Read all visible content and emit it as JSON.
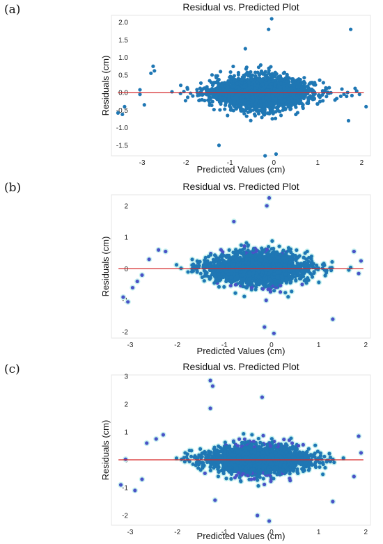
{
  "panels": [
    {
      "label": "(a)"
    },
    {
      "label": "(b)"
    },
    {
      "label": "(c)"
    }
  ],
  "chart_data": [
    {
      "type": "scatter",
      "title": "Residual vs. Predicted Plot",
      "xlabel": "Predicted Values (cm)",
      "ylabel": "Residuals (cm)",
      "xlim": [
        -3.7,
        2.2
      ],
      "ylim": [
        -1.8,
        2.2
      ],
      "xticks": [
        -3,
        -2,
        -1,
        0,
        1,
        2
      ],
      "yticks": [
        -1.5,
        -1.0,
        -0.5,
        0.0,
        0.5,
        1.0,
        1.5,
        2.0
      ],
      "ytick_labels": [
        "-1.5",
        "-1.0",
        "-0.5",
        "0.0",
        "0.5",
        "1.0",
        "1.5",
        "2.0"
      ],
      "reference_line_y": 0,
      "point_color": "#1f77b4",
      "line_color": "#d62728",
      "grid": false,
      "cloud": {
        "center_x": -0.3,
        "center_y": 0.0,
        "spread_x": 1.05,
        "spread_y": 0.45,
        "count": 2200
      },
      "outliers": [
        {
          "x": -3.55,
          "y": -0.58
        },
        {
          "x": -3.45,
          "y": -0.62
        },
        {
          "x": -3.4,
          "y": -0.4
        },
        {
          "x": -3.05,
          "y": 0.08
        },
        {
          "x": -3.05,
          "y": -0.05
        },
        {
          "x": -2.95,
          "y": -0.35
        },
        {
          "x": -2.8,
          "y": 0.55
        },
        {
          "x": -2.75,
          "y": 0.75
        },
        {
          "x": -2.72,
          "y": 0.62
        },
        {
          "x": -0.05,
          "y": 2.1
        },
        {
          "x": -0.12,
          "y": 1.8
        },
        {
          "x": 0.05,
          "y": -1.75
        },
        {
          "x": -0.2,
          "y": -1.8
        },
        {
          "x": 1.55,
          "y": 0.1
        },
        {
          "x": 1.75,
          "y": 1.8
        },
        {
          "x": 1.85,
          "y": 0.12
        },
        {
          "x": 1.95,
          "y": -0.05
        },
        {
          "x": 2.1,
          "y": -0.4
        },
        {
          "x": 1.7,
          "y": -0.8
        },
        {
          "x": -1.25,
          "y": -1.5
        },
        {
          "x": -0.65,
          "y": 1.25
        }
      ]
    },
    {
      "type": "scatter",
      "title": "Residual vs. Predicted Plot",
      "xlabel": "Predicted Values (cm)",
      "ylabel": "Residuals (cm)",
      "xlim": [
        -3.4,
        2.1
      ],
      "ylim": [
        -2.2,
        2.35
      ],
      "xticks": [
        -3,
        -2,
        -1,
        0,
        1,
        2
      ],
      "yticks": [
        -2,
        -1,
        0,
        1,
        2
      ],
      "ytick_labels": [
        "-2",
        "-1",
        "0",
        "1",
        "2"
      ],
      "reference_line_y": 0,
      "point_color": "#1f77b4",
      "secondary_color": "#4a52c7",
      "halo_color": "#c7f2ef",
      "line_color": "#d62728",
      "grid": false,
      "cloud": {
        "center_x": -0.3,
        "center_y": 0.0,
        "spread_x": 0.95,
        "spread_y": 0.5,
        "count": 2200
      },
      "outliers": [
        {
          "x": -3.15,
          "y": -0.9
        },
        {
          "x": -3.05,
          "y": -1.05
        },
        {
          "x": -2.95,
          "y": -0.6
        },
        {
          "x": -2.85,
          "y": -0.4
        },
        {
          "x": -2.75,
          "y": -0.2
        },
        {
          "x": -2.6,
          "y": 0.3
        },
        {
          "x": -2.4,
          "y": 0.6
        },
        {
          "x": -2.25,
          "y": 0.55
        },
        {
          "x": -0.05,
          "y": 2.25
        },
        {
          "x": -0.1,
          "y": 2.0
        },
        {
          "x": 0.05,
          "y": -2.05
        },
        {
          "x": -0.15,
          "y": -1.85
        },
        {
          "x": 1.3,
          "y": -1.6
        },
        {
          "x": 1.75,
          "y": 0.55
        },
        {
          "x": 1.9,
          "y": 0.25
        },
        {
          "x": 1.85,
          "y": -0.15
        },
        {
          "x": -0.8,
          "y": 1.5
        }
      ]
    },
    {
      "type": "scatter",
      "title": "Residual vs. Predicted Plot",
      "xlabel": "Predicted Values (cm)",
      "ylabel": "Residuals (cm)",
      "xlim": [
        -3.4,
        2.1
      ],
      "ylim": [
        -2.35,
        3.05
      ],
      "xticks": [
        -3,
        -2,
        -1,
        0,
        1,
        2
      ],
      "yticks": [
        -2,
        -1,
        0,
        1,
        2,
        3
      ],
      "ytick_labels": [
        "-2",
        "-1",
        "0",
        "1",
        "2",
        "3"
      ],
      "reference_line_y": 0,
      "point_color": "#1f77b4",
      "secondary_color": "#4a52c7",
      "halo_color": "#c7f2ef",
      "line_color": "#d62728",
      "grid": false,
      "cloud": {
        "center_x": -0.3,
        "center_y": 0.0,
        "spread_x": 1.0,
        "spread_y": 0.5,
        "count": 2200
      },
      "outliers": [
        {
          "x": -3.2,
          "y": -0.9
        },
        {
          "x": -3.1,
          "y": 0.02
        },
        {
          "x": -2.9,
          "y": -1.1
        },
        {
          "x": -2.75,
          "y": -0.7
        },
        {
          "x": -2.65,
          "y": 0.6
        },
        {
          "x": -2.45,
          "y": 0.75
        },
        {
          "x": -2.3,
          "y": 0.9
        },
        {
          "x": -1.3,
          "y": 2.85
        },
        {
          "x": -1.25,
          "y": 2.65
        },
        {
          "x": -1.3,
          "y": 1.85
        },
        {
          "x": -0.2,
          "y": 2.25
        },
        {
          "x": -0.05,
          "y": -2.2
        },
        {
          "x": -0.3,
          "y": -2.0
        },
        {
          "x": 1.3,
          "y": -1.5
        },
        {
          "x": 1.85,
          "y": 0.85
        },
        {
          "x": 1.9,
          "y": 0.25
        },
        {
          "x": 1.75,
          "y": -0.6
        },
        {
          "x": -1.2,
          "y": -1.45
        }
      ]
    }
  ]
}
